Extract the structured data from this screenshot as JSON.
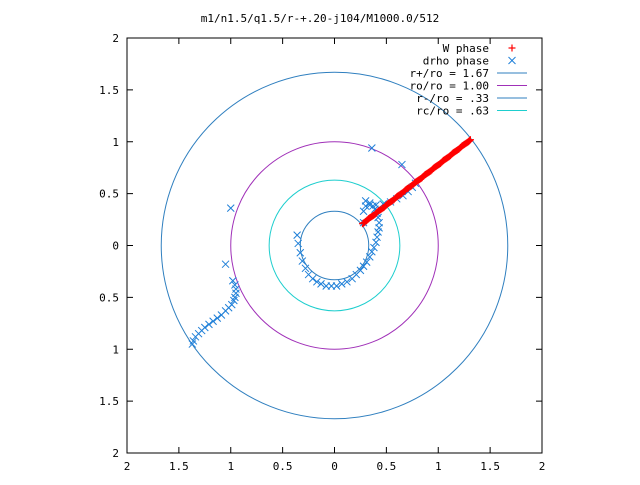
{
  "chart_data": {
    "type": "scatter",
    "title": "m1/n1.5/q1.5/r-+.20-j104/M1000.0/512",
    "xlabel": "",
    "ylabel": "",
    "xlim": [
      -2,
      2
    ],
    "ylim": [
      -2,
      2
    ],
    "grid": false,
    "legend_position": "top-right",
    "x_tick_labels": [
      "2",
      "1.5",
      "1",
      "0.5",
      "0",
      "0.5",
      "1",
      "1.5",
      "2"
    ],
    "x_tick_values": [
      -2,
      -1.5,
      -1,
      -0.5,
      0,
      0.5,
      1,
      1.5,
      2
    ],
    "y_tick_labels": [
      "2",
      "1.5",
      "1",
      "0.5",
      "0",
      "0.5",
      "1",
      "1.5",
      "2"
    ],
    "y_tick_values": [
      2,
      1.5,
      1,
      0.5,
      0,
      -0.5,
      -1,
      -1.5,
      -2
    ],
    "circles": [
      {
        "label": "r+/ro = 1.67",
        "radius": 1.67,
        "color": "#2f7fbf"
      },
      {
        "label": "ro/ro = 1.00",
        "radius": 1.0,
        "color": "#a030b8"
      },
      {
        "label": "r-/ro = .33",
        "radius": 0.33,
        "color": "#2f7fbf"
      },
      {
        "label": "rc/ro = .63",
        "radius": 0.63,
        "color": "#1ecece"
      }
    ],
    "series": [
      {
        "name": "W phase",
        "marker": "plus",
        "color": "#ff0000",
        "x": [
          0.27,
          0.3,
          0.33,
          0.36,
          0.39,
          0.42,
          0.45,
          0.48,
          0.51,
          0.54,
          0.57,
          0.6,
          0.63,
          0.66,
          0.69,
          0.72,
          0.75,
          0.78,
          0.81,
          0.84,
          0.87,
          0.9,
          0.93,
          0.96,
          0.99,
          1.02,
          1.05,
          1.08,
          1.11,
          1.14,
          1.17,
          1.2,
          1.23,
          1.26,
          1.29,
          1.31
        ],
        "y": [
          0.21,
          0.23,
          0.26,
          0.28,
          0.3,
          0.33,
          0.35,
          0.37,
          0.4,
          0.42,
          0.44,
          0.47,
          0.49,
          0.51,
          0.54,
          0.56,
          0.58,
          0.61,
          0.63,
          0.65,
          0.68,
          0.7,
          0.72,
          0.75,
          0.77,
          0.79,
          0.82,
          0.84,
          0.86,
          0.89,
          0.91,
          0.93,
          0.96,
          0.98,
          1.0,
          1.02
        ]
      },
      {
        "name": "drho phase",
        "marker": "cross",
        "color": "#1e7fd8",
        "x": [
          0.36,
          0.65,
          -1.0,
          -1.05,
          -1.37,
          -1.36,
          -1.34,
          -1.31,
          -1.28,
          -1.25,
          -1.21,
          -1.17,
          -1.13,
          -1.09,
          -1.05,
          -1.02,
          -0.99,
          -0.97,
          -0.96,
          -0.95,
          -0.95,
          -0.96,
          -0.98,
          -0.36,
          -0.35,
          -0.33,
          -0.31,
          -0.28,
          -0.25,
          -0.21,
          -0.17,
          -0.13,
          -0.08,
          -0.03,
          0.02,
          0.07,
          0.12,
          0.17,
          0.21,
          0.25,
          0.28,
          0.31,
          0.34,
          0.36,
          0.38,
          0.4,
          0.41,
          0.42,
          0.43,
          0.43,
          0.42,
          0.41,
          0.39,
          0.37,
          0.34,
          0.3,
          0.28,
          0.28,
          0.3,
          0.34,
          0.4,
          0.47,
          0.54,
          0.6,
          0.66,
          0.71,
          0.75,
          0.78
        ],
        "y": [
          0.94,
          0.78,
          0.36,
          -0.18,
          -0.95,
          -0.92,
          -0.88,
          -0.85,
          -0.82,
          -0.79,
          -0.76,
          -0.73,
          -0.7,
          -0.67,
          -0.63,
          -0.6,
          -0.57,
          -0.53,
          -0.5,
          -0.46,
          -0.42,
          -0.38,
          -0.34,
          0.1,
          0.02,
          -0.07,
          -0.15,
          -0.22,
          -0.28,
          -0.32,
          -0.35,
          -0.37,
          -0.39,
          -0.39,
          -0.39,
          -0.37,
          -0.35,
          -0.32,
          -0.28,
          -0.24,
          -0.2,
          -0.16,
          -0.11,
          -0.06,
          -0.02,
          0.03,
          0.08,
          0.13,
          0.17,
          0.22,
          0.27,
          0.31,
          0.35,
          0.38,
          0.41,
          0.43,
          0.33,
          0.22,
          0.38,
          0.39,
          0.39,
          0.4,
          0.42,
          0.45,
          0.48,
          0.52,
          0.56,
          0.6
        ]
      }
    ]
  }
}
